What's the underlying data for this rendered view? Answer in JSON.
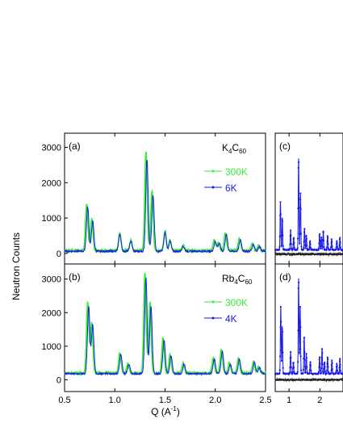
{
  "colors": {
    "hot": "#33ee33",
    "cold": "#1a1aee",
    "diff": "#222222",
    "axis": "#000000"
  },
  "ylabel": "Neutron Counts",
  "xlabel_main": "Q (A",
  "xlabel_unit_sup": "-1",
  "xlabel_close": ")",
  "chart_data": [
    {
      "id": "a",
      "type": "line",
      "panel_label": "(a)",
      "compound": {
        "main": "K",
        "sub1": "4",
        "mid": "C",
        "sub2": "60"
      },
      "xlim": [
        0.5,
        2.5
      ],
      "ylim": [
        -300,
        3400
      ],
      "x_ticks": [
        "0.5",
        "1.0",
        "1.5",
        "2.0",
        "2.5"
      ],
      "y_ticks": [
        0,
        1000,
        2000,
        3000
      ],
      "y_tick_labels": [
        "0",
        "1000",
        "2000",
        "3000"
      ],
      "legend": [
        "300K",
        "6K"
      ],
      "series": [
        {
          "name": "300K",
          "peaks": [
            [
              0.72,
              1300
            ],
            [
              0.77,
              900
            ],
            [
              1.05,
              500
            ],
            [
              1.16,
              300
            ],
            [
              1.31,
              2800
            ],
            [
              1.37,
              1700
            ],
            [
              1.5,
              550
            ],
            [
              1.55,
              300
            ],
            [
              1.68,
              150
            ],
            [
              1.99,
              300
            ],
            [
              2.03,
              250
            ],
            [
              2.1,
              500
            ],
            [
              2.24,
              350
            ],
            [
              2.37,
              200
            ],
            [
              2.43,
              150
            ]
          ],
          "baseline": 80
        },
        {
          "name": "6K",
          "peaks": [
            [
              0.73,
              1250
            ],
            [
              0.78,
              850
            ],
            [
              1.05,
              480
            ],
            [
              1.16,
              280
            ],
            [
              1.32,
              2600
            ],
            [
              1.38,
              1600
            ],
            [
              1.5,
              520
            ],
            [
              1.55,
              280
            ],
            [
              1.68,
              140
            ],
            [
              2.0,
              280
            ],
            [
              2.04,
              230
            ],
            [
              2.11,
              470
            ],
            [
              2.25,
              330
            ],
            [
              2.38,
              190
            ],
            [
              2.44,
              140
            ]
          ],
          "baseline": 60
        }
      ]
    },
    {
      "id": "b",
      "type": "line",
      "panel_label": "(b)",
      "compound": {
        "main": "Rb",
        "sub1": "4",
        "mid": "C",
        "sub2": "60"
      },
      "xlim": [
        0.5,
        2.5
      ],
      "ylim": [
        -350,
        3450
      ],
      "x_ticks": [
        "0.5",
        "1.0",
        "1.5",
        "2.0",
        "2.5"
      ],
      "y_ticks": [
        0,
        1000,
        2000,
        3000
      ],
      "y_tick_labels": [
        "0",
        "1000",
        "2000",
        "3000"
      ],
      "legend": [
        "300K",
        "4K"
      ],
      "series": [
        {
          "name": "300K",
          "peaks": [
            [
              0.73,
              2100
            ],
            [
              0.77,
              1500
            ],
            [
              1.05,
              600
            ],
            [
              1.13,
              300
            ],
            [
              1.3,
              3000
            ],
            [
              1.35,
              2100
            ],
            [
              1.48,
              1050
            ],
            [
              1.55,
              550
            ],
            [
              1.68,
              300
            ],
            [
              1.98,
              450
            ],
            [
              2.06,
              700
            ],
            [
              2.14,
              300
            ],
            [
              2.23,
              450
            ],
            [
              2.38,
              350
            ],
            [
              2.43,
              200
            ]
          ],
          "baseline": 200
        },
        {
          "name": "4K",
          "peaks": [
            [
              0.74,
              2000
            ],
            [
              0.78,
              1450
            ],
            [
              1.06,
              580
            ],
            [
              1.14,
              280
            ],
            [
              1.31,
              2850
            ],
            [
              1.36,
              2000
            ],
            [
              1.49,
              1000
            ],
            [
              1.56,
              520
            ],
            [
              1.69,
              280
            ],
            [
              1.99,
              430
            ],
            [
              2.07,
              680
            ],
            [
              2.15,
              280
            ],
            [
              2.24,
              430
            ],
            [
              2.39,
              330
            ],
            [
              2.44,
              190
            ]
          ],
          "baseline": 180
        }
      ]
    },
    {
      "id": "c",
      "type": "line",
      "panel_label": "(c)",
      "xlim": [
        0.55,
        2.75
      ],
      "ylim": [
        -300,
        3400
      ],
      "x_ticks": [
        "1",
        "2"
      ],
      "series": [
        {
          "name": "cold",
          "peaks": [
            [
              0.72,
              1350
            ],
            [
              0.78,
              900
            ],
            [
              1.05,
              550
            ],
            [
              1.15,
              350
            ],
            [
              1.31,
              2600
            ],
            [
              1.37,
              1600
            ],
            [
              1.5,
              600
            ],
            [
              1.56,
              400
            ],
            [
              1.68,
              250
            ],
            [
              1.99,
              450
            ],
            [
              2.05,
              350
            ],
            [
              2.11,
              550
            ],
            [
              2.25,
              400
            ],
            [
              2.38,
              300
            ],
            [
              2.55,
              250
            ],
            [
              2.65,
              350
            ]
          ],
          "baseline": 100
        },
        {
          "name": "diff",
          "peaks": [],
          "baseline": -20
        }
      ]
    },
    {
      "id": "d",
      "type": "line",
      "panel_label": "(d)",
      "xlim": [
        0.55,
        2.75
      ],
      "ylim": [
        -350,
        3450
      ],
      "x_ticks": [
        "1",
        "2"
      ],
      "series": [
        {
          "name": "cold",
          "peaks": [
            [
              0.73,
              2000
            ],
            [
              0.78,
              1400
            ],
            [
              1.05,
              650
            ],
            [
              1.14,
              350
            ],
            [
              1.31,
              2850
            ],
            [
              1.36,
              2000
            ],
            [
              1.49,
              1100
            ],
            [
              1.56,
              600
            ],
            [
              1.69,
              350
            ],
            [
              1.99,
              500
            ],
            [
              2.07,
              750
            ],
            [
              2.15,
              350
            ],
            [
              2.25,
              500
            ],
            [
              2.39,
              400
            ],
            [
              2.55,
              300
            ],
            [
              2.65,
              450
            ]
          ],
          "baseline": 180
        },
        {
          "name": "diff",
          "peaks": [],
          "baseline": 0
        }
      ]
    }
  ]
}
